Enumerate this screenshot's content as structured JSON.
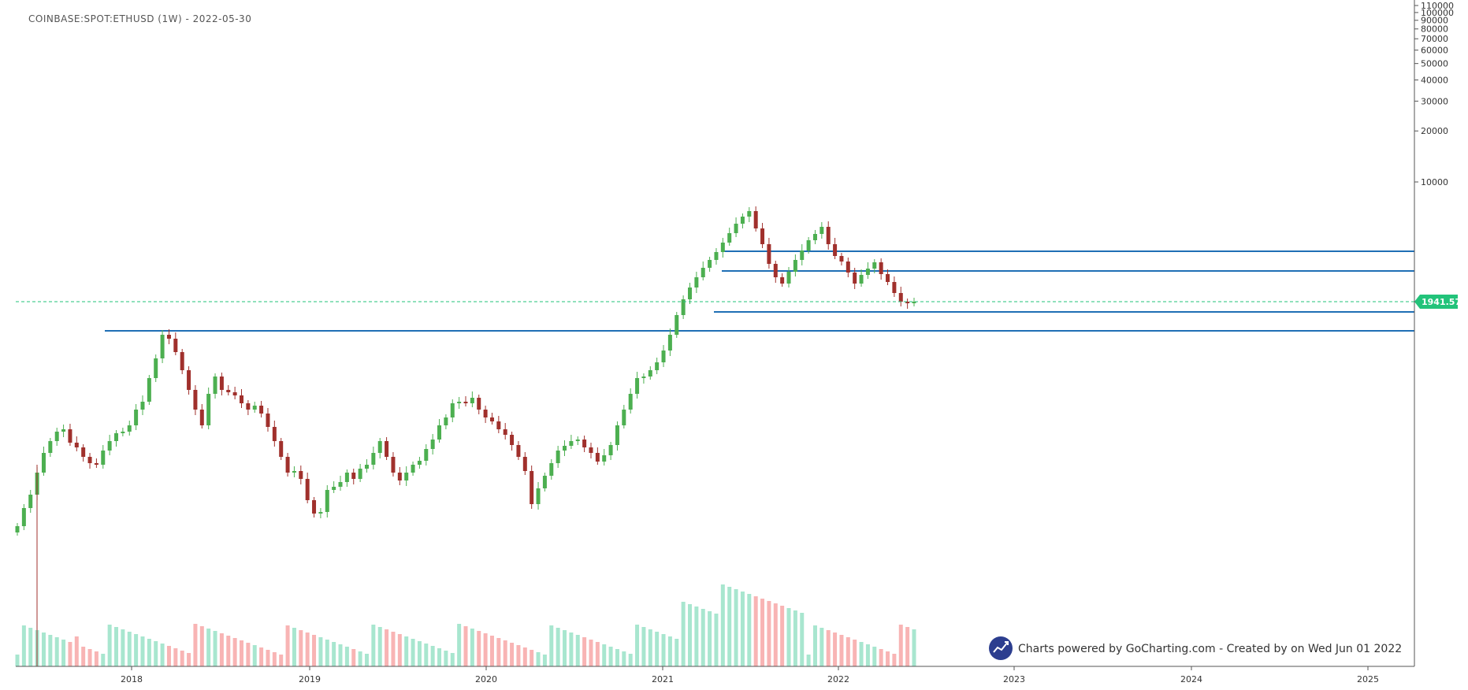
{
  "chart_data": {
    "type": "candlestick",
    "title": "COINBASE:SPOT:ETHUSD (1W) - 2022-05-30",
    "price_scale": "log",
    "y_ticks": [
      110000,
      100000,
      90000,
      80000,
      70000,
      60000,
      50000,
      40000,
      30000,
      20000,
      10000
    ],
    "x_ticks": [
      "2018",
      "2019",
      "2020",
      "2021",
      "2022",
      "2023",
      "2024",
      "2025"
    ],
    "current_price": 1941.57,
    "horizontal_levels": [
      {
        "price": 4100,
        "from": "2021-05-09",
        "to": "right-edge",
        "color": "#1f6fb5"
      },
      {
        "price": 3450,
        "from": "2021-05-09",
        "to": "right-edge",
        "color": "#1f6fb5"
      },
      {
        "price": 1800,
        "from": "2021-05-02",
        "to": "right-edge",
        "color": "#1f6fb5"
      },
      {
        "price": 1420,
        "from": "2018-01-01",
        "to": "right-edge",
        "color": "#1f6fb5"
      }
    ],
    "candles_close_approx": [
      420,
      330,
      380,
      430,
      395,
      310,
      290,
      320,
      300,
      305,
      345,
      350,
      365,
      335,
      310,
      330,
      370,
      420,
      480,
      550,
      700,
      860,
      1100,
      1200,
      1050,
      920,
      860,
      880,
      600,
      560,
      520,
      420,
      390,
      510,
      640,
      720,
      660,
      580,
      560,
      470,
      490,
      430,
      460,
      470,
      440,
      410,
      360,
      290,
      280,
      280,
      290,
      230,
      220,
      210,
      200,
      190,
      115,
      90,
      100,
      140,
      130,
      115,
      120,
      130,
      150,
      160,
      170,
      250,
      270,
      310,
      240,
      230,
      215,
      190,
      170,
      200,
      180,
      175,
      170,
      130,
      130,
      185,
      240,
      220,
      140,
      110,
      130,
      170,
      210,
      240,
      245,
      250,
      350,
      390,
      440,
      400,
      370,
      350,
      360,
      380,
      600,
      1100,
      1300,
      1400,
      1700,
      1600,
      1800,
      2000,
      2100,
      2500,
      2800,
      3400,
      4100,
      3800,
      2400,
      2100,
      2200,
      2400,
      2600,
      2800,
      3200,
      3500,
      3700,
      4100,
      3900,
      4300,
      4500,
      4700,
      4400,
      4000,
      3700,
      3200,
      2600,
      2900,
      3100,
      3400,
      3000,
      2800,
      2500,
      1950,
      1900,
      1941.57
    ],
    "volume_color_up": "#a8e6cf",
    "volume_color_down": "#f8b4b4",
    "candle_up": "#4caf50",
    "candle_down": "#a0302c"
  },
  "credit": {
    "text": "Charts powered by GoCharting.com - Created by  on Wed Jun 01 2022",
    "logo_icon": "gocharting-logo-icon"
  },
  "colors": {
    "level_line": "#1f6fb5",
    "price_badge": "#22c37a",
    "price_dash": "#22c37a",
    "axis": "#555555"
  }
}
